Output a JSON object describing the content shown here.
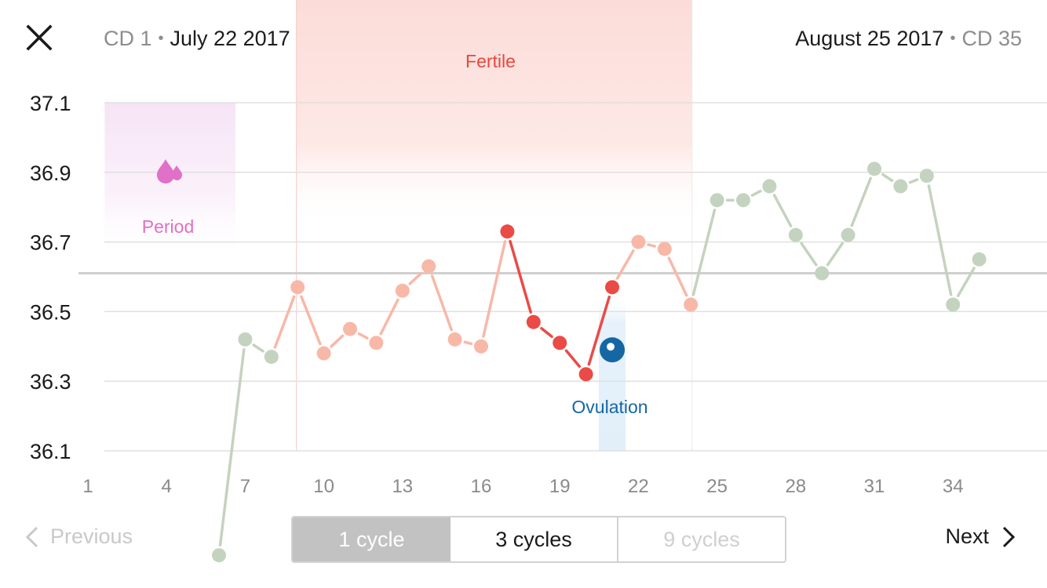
{
  "header": {
    "left_cd": "CD 1",
    "left_date": "July 22 2017",
    "right_date": "August 25 2017",
    "right_cd": "CD 35",
    "separator": "•"
  },
  "footer": {
    "previous_label": "Previous",
    "next_label": "Next",
    "segments": [
      "1 cycle",
      "3 cycles",
      "9 cycles"
    ],
    "selected_segment": "1 cycle",
    "disabled_segment": "9 cycles"
  },
  "icons": {
    "close": "close-icon",
    "previous": "chevron-left-icon",
    "next": "chevron-right-icon",
    "period": "drops-icon",
    "ovulation": "egg-icon"
  },
  "colors": {
    "period": "#e070c8",
    "period_band": "#f6e3f4",
    "fertile_text": "#e8473f",
    "fertile_band": "#fcdedb",
    "ovulation": "#1467a3",
    "ovulation_band": "#e4f0fb",
    "green_series": "#c4d3bf",
    "pink_series": "#f8b8a8",
    "red_series": "#ea4b46",
    "coverline": "#cfcfcf",
    "grid": "#e0e0e0"
  },
  "chart_data": {
    "type": "line",
    "y_ticks": [
      "37.1",
      "36.9",
      "36.7",
      "36.5",
      "36.3",
      "36.1"
    ],
    "x_ticks": [
      "1",
      "4",
      "7",
      "10",
      "13",
      "16",
      "19",
      "22",
      "25",
      "28",
      "31",
      "34"
    ],
    "ylim": [
      36.1,
      37.1
    ],
    "xlim": [
      1,
      37
    ],
    "coverline": 36.61,
    "series": [
      {
        "x": [
          6,
          7,
          8,
          9,
          10,
          11,
          12,
          13,
          14,
          15,
          16,
          17,
          18,
          19,
          20,
          21,
          22,
          23,
          24,
          25,
          26,
          27,
          28,
          29,
          30,
          31,
          32,
          33,
          34,
          35
        ],
        "values": [
          35.8,
          36.42,
          36.37,
          36.57,
          36.38,
          36.45,
          36.41,
          36.56,
          36.63,
          36.42,
          36.4,
          36.73,
          36.47,
          36.41,
          36.32,
          36.57,
          36.7,
          36.68,
          36.52,
          36.82,
          36.82,
          36.86,
          36.72,
          36.61,
          36.72,
          36.91,
          36.86,
          36.89,
          36.52,
          36.65
        ]
      }
    ],
    "phases": {
      "period": {
        "label": "Period",
        "start_day": 2,
        "end_day": 6
      },
      "fertile": {
        "label": "Fertile",
        "start_day": 9,
        "end_day": 24
      },
      "ovulation": {
        "label": "Ovulation",
        "day": 21,
        "marker_value": 36.39
      }
    }
  }
}
